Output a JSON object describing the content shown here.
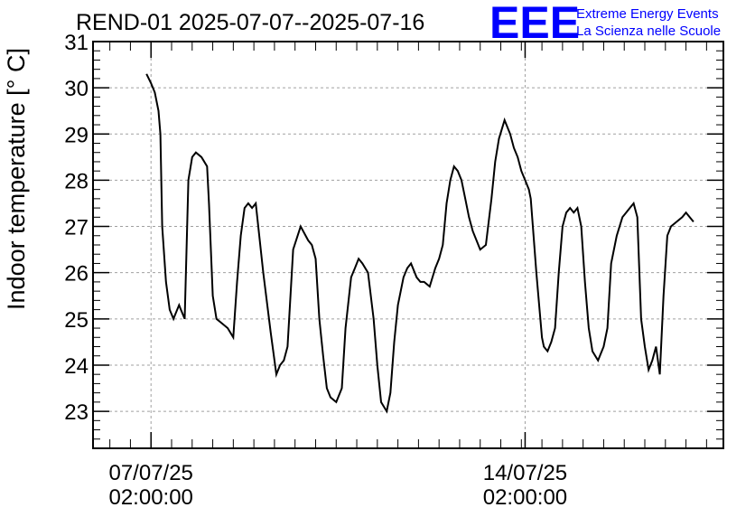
{
  "chart_data": {
    "type": "line",
    "title": "REND-01 2025-07-07--2025-07-16",
    "ylabel": "Indoor temperature [° C]",
    "xlabel": "",
    "ylim": [
      22.2,
      31
    ],
    "xlim_days": [
      -1.55,
      15.3
    ],
    "y_ticks": [
      23,
      24,
      25,
      26,
      27,
      28,
      29,
      30,
      31
    ],
    "x_ticks": [
      {
        "day": 0,
        "date": "07/07/25",
        "time": "02:00:00"
      },
      {
        "day": 10,
        "date": "14/07/25",
        "time": "02:00:00"
      }
    ],
    "grid": true,
    "line_color": "#000000",
    "series": [
      {
        "name": "REND-01",
        "x_days": [
          -0.12,
          0.0,
          0.1,
          0.2,
          0.25,
          0.3,
          0.4,
          0.5,
          0.55,
          0.6,
          0.65,
          0.75,
          0.8,
          0.9,
          1.0,
          1.1,
          1.2,
          1.35,
          1.5,
          1.55,
          1.65,
          1.75,
          1.9,
          2.05,
          2.2,
          2.3,
          2.4,
          2.5,
          2.6,
          2.7,
          2.8,
          3.0,
          3.2,
          3.35,
          3.45,
          3.55,
          3.65,
          3.8,
          4.0,
          4.2,
          4.3,
          4.4,
          4.5,
          4.6,
          4.7,
          4.8,
          4.95,
          5.1,
          5.2,
          5.35,
          5.45,
          5.55,
          5.65,
          5.8,
          5.95,
          6.05,
          6.15,
          6.3,
          6.4,
          6.5,
          6.6,
          6.75,
          6.85,
          6.95,
          7.1,
          7.2,
          7.3,
          7.45,
          7.6,
          7.7,
          7.8,
          7.9,
          8.0,
          8.1,
          8.2,
          8.3,
          8.4,
          8.5,
          8.6,
          8.7,
          8.8,
          8.95,
          9.1,
          9.2,
          9.3,
          9.45,
          9.6,
          9.7,
          9.8,
          9.9,
          10.0,
          10.1,
          10.15,
          10.3,
          10.45,
          10.5,
          10.6,
          10.7,
          10.8,
          10.9,
          11.0,
          11.1,
          11.2,
          11.3,
          11.4,
          11.5,
          11.6,
          11.7,
          11.8,
          11.95,
          12.1,
          12.2,
          12.3,
          12.45,
          12.6,
          12.7,
          12.8,
          12.9,
          13.0,
          13.1,
          13.2,
          13.3,
          13.4,
          13.5,
          13.6,
          13.7,
          13.8,
          13.9,
          14.05,
          14.2,
          14.3,
          14.4,
          14.5
        ],
        "values": [
          30.3,
          30.1,
          29.9,
          29.5,
          29.0,
          27.0,
          25.8,
          25.2,
          25.1,
          25.0,
          25.1,
          25.3,
          25.2,
          25.0,
          28.0,
          28.5,
          28.6,
          28.5,
          28.3,
          27.5,
          25.5,
          25.0,
          24.9,
          24.8,
          24.6,
          25.8,
          26.8,
          27.4,
          27.5,
          27.4,
          27.5,
          26.0,
          24.7,
          23.8,
          24.0,
          24.1,
          24.4,
          26.5,
          27.0,
          26.7,
          26.6,
          26.3,
          25.0,
          24.2,
          23.5,
          23.3,
          23.2,
          23.5,
          24.8,
          25.9,
          26.1,
          26.3,
          26.2,
          26.0,
          25.0,
          24.0,
          23.2,
          23.0,
          23.4,
          24.5,
          25.3,
          25.9,
          26.1,
          26.2,
          25.9,
          25.8,
          25.8,
          25.7,
          26.1,
          26.3,
          26.6,
          27.5,
          28.0,
          28.3,
          28.2,
          28.0,
          27.6,
          27.2,
          26.9,
          26.7,
          26.5,
          26.6,
          27.6,
          28.4,
          28.9,
          29.3,
          29.0,
          28.7,
          28.5,
          28.2,
          28.0,
          27.8,
          27.6,
          26.0,
          24.6,
          24.4,
          24.3,
          24.5,
          24.8,
          26.0,
          27.0,
          27.3,
          27.4,
          27.3,
          27.4,
          27.0,
          25.8,
          24.8,
          24.3,
          24.1,
          24.4,
          24.8,
          26.2,
          26.8,
          27.2,
          27.3,
          27.4,
          27.5,
          27.2,
          25.0,
          24.4,
          23.9,
          24.1,
          24.4,
          23.8,
          25.5,
          26.8,
          27.0,
          27.1,
          27.2,
          27.3,
          27.2,
          27.1
        ],
        "_note": "values estimated from the plotted trace"
      }
    ]
  },
  "logo": {
    "mark": "EEE",
    "line1": "Extreme Energy Events",
    "line2": "La Scienza nelle Scuole",
    "color": "#0000ff"
  }
}
